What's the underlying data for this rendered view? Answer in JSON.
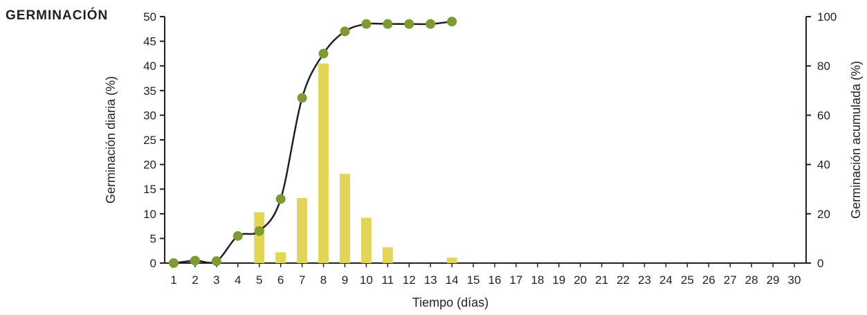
{
  "chart_data": {
    "type": "bar+line",
    "title": "GERMINACIÓN",
    "xlabel": "Tiempo (días)",
    "ylabel_left": "Germinación diaria (%)",
    "ylabel_right": "Germinación acumulada (%)",
    "categories": [
      "1",
      "2",
      "3",
      "4",
      "5",
      "6",
      "7",
      "8",
      "9",
      "10",
      "11",
      "12",
      "13",
      "14",
      "15",
      "16",
      "17",
      "18",
      "19",
      "20",
      "21",
      "22",
      "23",
      "24",
      "25",
      "26",
      "27",
      "28",
      "29",
      "30"
    ],
    "ylim_left": [
      0,
      50
    ],
    "yticks_left": [
      0,
      5,
      10,
      15,
      20,
      25,
      30,
      35,
      40,
      45,
      50
    ],
    "ylim_right": [
      0,
      100
    ],
    "yticks_right": [
      0,
      20,
      40,
      60,
      80,
      100
    ],
    "grid": false,
    "series": [
      {
        "kind": "bar",
        "axis": "left",
        "color": "#e3d45a",
        "values": [
          0,
          0,
          0,
          0,
          10.3,
          2.2,
          13.2,
          40.5,
          18.1,
          9.2,
          3.2,
          0,
          0,
          1.1,
          0,
          0,
          0,
          0,
          0,
          0,
          0,
          0,
          0,
          0,
          0,
          0,
          0,
          0,
          0,
          0
        ]
      },
      {
        "kind": "line",
        "axis": "right",
        "color": "#231f20",
        "marker_color": "#7d9a35",
        "x": [
          "1",
          "2",
          "3",
          "4",
          "5",
          "6",
          "7",
          "8",
          "9",
          "10",
          "11",
          "12",
          "13",
          "14"
        ],
        "values": [
          0,
          1,
          0.8,
          11,
          13,
          26,
          67,
          85,
          94,
          97,
          97,
          97,
          97,
          98
        ]
      }
    ]
  }
}
